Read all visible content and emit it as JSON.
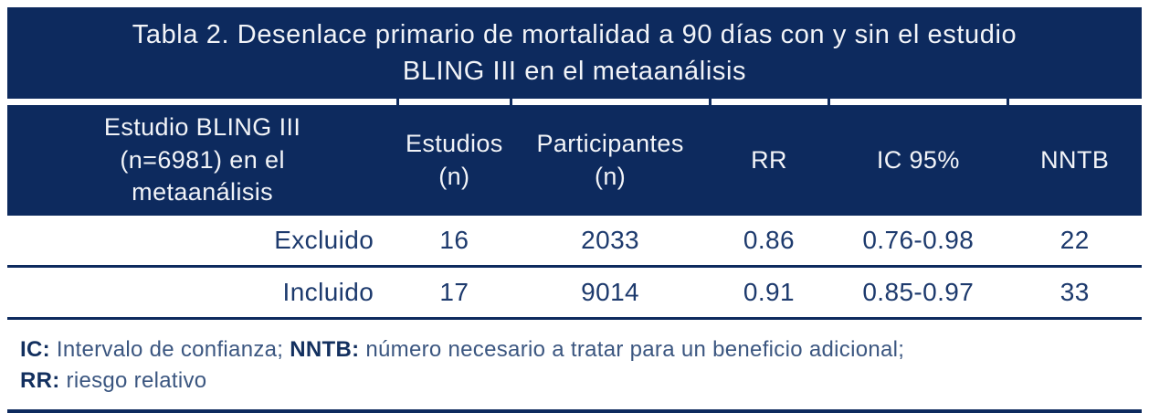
{
  "colors": {
    "navy_band": "#0d2a5e",
    "band_text": "#f2f4f8",
    "body_text": "#1d3a6d",
    "footnote_text": "#3b5680",
    "footnote_bold": "#13305f",
    "background": "#ffffff"
  },
  "table": {
    "title_lines": [
      "Tabla 2. Desenlace primario de mortalidad a 90 días con y sin el estudio",
      "BLING III en el metaanálisis"
    ],
    "header": {
      "col1_line1": "Estudio BLING III",
      "col1_line2": "(n=6981) en el",
      "col1_line3": "metaanálisis",
      "col2_line1": "Estudios",
      "col2_line2": "(n)",
      "col3_line1": "Participantes",
      "col3_line2": "(n)",
      "col4": "RR",
      "col5": "IC 95%",
      "col6": "NNTB"
    },
    "rows": [
      {
        "estudio": "Excluido",
        "estudios_n": "16",
        "participantes_n": "2033",
        "rr": "0.86",
        "ic95": "0.76-0.98",
        "nntb": "22"
      },
      {
        "estudio": "Incluido",
        "estudios_n": "17",
        "participantes_n": "9014",
        "rr": "0.91",
        "ic95": "0.85-0.97",
        "nntb": "33"
      }
    ],
    "footnote": {
      "ic_abbr": "IC:",
      "ic_text": "Intervalo de confianza;",
      "nntb_abbr": "NNTB:",
      "nntb_text": "número necesario a tratar para un beneficio adicional;",
      "rr_abbr": "RR:",
      "rr_text": "riesgo relativo"
    }
  },
  "chart_data": {
    "type": "table",
    "title": "Tabla 2. Desenlace primario de mortalidad a 90 días con y sin el estudio BLING III en el metaanálisis",
    "columns": [
      "Estudio BLING III (n=6981) en el metaanálisis",
      "Estudios (n)",
      "Participantes (n)",
      "RR",
      "IC 95%",
      "NNTB"
    ],
    "rows": [
      [
        "Excluido",
        16,
        2033,
        0.86,
        "0.76-0.98",
        22
      ],
      [
        "Incluido",
        17,
        9014,
        0.91,
        "0.85-0.97",
        33
      ]
    ],
    "footnote": "IC: Intervalo de confianza; NNTB: número necesario a tratar para un beneficio adicional; RR: riesgo relativo"
  }
}
